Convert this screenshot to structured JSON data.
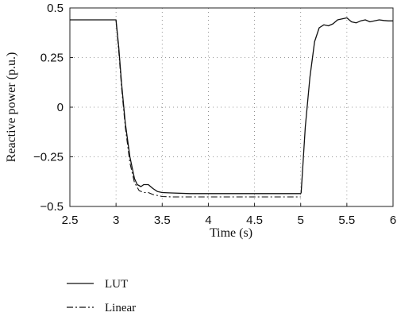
{
  "chart_data": {
    "type": "line",
    "title": "",
    "xlabel": "Time (s)",
    "ylabel": "Reactive power (p.u.)",
    "xlim": [
      2.5,
      6
    ],
    "ylim": [
      -0.5,
      0.5
    ],
    "grid": true,
    "legend_position": "bottom-left",
    "x_ticks": [
      2.5,
      3,
      3.5,
      4,
      4.5,
      5,
      5.5,
      6
    ],
    "x_tick_labels": [
      "2.5",
      "3",
      "3.5",
      "4",
      "4.5",
      "5",
      "5.5",
      "6"
    ],
    "y_ticks": [
      0.5,
      0.25,
      0,
      -0.25,
      -0.5
    ],
    "y_tick_labels": [
      "0.5",
      "0.25",
      "0",
      "−0.25",
      "−0.5"
    ],
    "series": [
      {
        "name": "LUT",
        "style": "solid",
        "x": [
          2.5,
          3.0,
          3.03,
          3.06,
          3.1,
          3.15,
          3.2,
          3.23,
          3.27,
          3.3,
          3.35,
          3.4,
          3.45,
          3.5,
          3.6,
          3.8,
          4.0,
          4.5,
          4.8,
          5.0,
          5.005,
          5.05,
          5.1,
          5.15,
          5.2,
          5.25,
          5.3,
          5.35,
          5.4,
          5.45,
          5.5,
          5.55,
          5.6,
          5.65,
          5.7,
          5.75,
          5.8,
          5.85,
          5.9,
          5.95,
          6.0
        ],
        "y": [
          0.44,
          0.44,
          0.3,
          0.12,
          -0.08,
          -0.25,
          -0.36,
          -0.39,
          -0.4,
          -0.39,
          -0.39,
          -0.41,
          -0.425,
          -0.43,
          -0.432,
          -0.435,
          -0.435,
          -0.435,
          -0.435,
          -0.435,
          -0.43,
          -0.1,
          0.15,
          0.33,
          0.4,
          0.415,
          0.41,
          0.42,
          0.44,
          0.445,
          0.45,
          0.43,
          0.425,
          0.435,
          0.44,
          0.43,
          0.435,
          0.44,
          0.437,
          0.435,
          0.435
        ]
      },
      {
        "name": "Linear",
        "style": "dash-dot",
        "x": [
          2.5,
          3.0,
          3.03,
          3.06,
          3.1,
          3.15,
          3.2,
          3.25,
          3.3,
          3.35,
          3.4,
          3.5,
          3.6,
          4.0,
          4.5,
          5.0
        ],
        "y": [
          0.44,
          0.44,
          0.28,
          0.1,
          -0.1,
          -0.28,
          -0.38,
          -0.42,
          -0.43,
          -0.43,
          -0.44,
          -0.45,
          -0.452,
          -0.452,
          -0.452,
          -0.452
        ]
      }
    ]
  }
}
